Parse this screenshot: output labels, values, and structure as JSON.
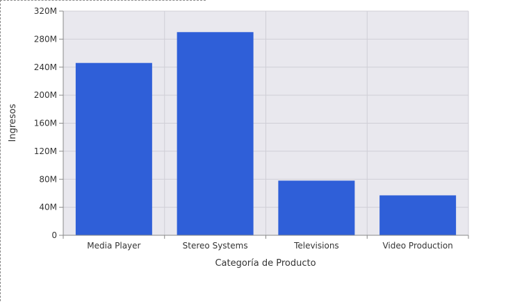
{
  "chart_data": {
    "type": "bar",
    "xlabel": "Categoría de Producto",
    "ylabel": "Ingresos",
    "categories": [
      "Media Player",
      "Stereo Systems",
      "Televisions",
      "Video Production"
    ],
    "values": [
      246000000,
      290000000,
      78000000,
      57000000
    ],
    "ylim": [
      0,
      320000000
    ],
    "yticks": [
      0,
      40000000,
      80000000,
      120000000,
      160000000,
      200000000,
      240000000,
      280000000,
      320000000
    ],
    "ytick_labels": [
      "0",
      "40M",
      "80M",
      "120M",
      "160M",
      "200M",
      "240M",
      "280M",
      "320M"
    ],
    "grid": true,
    "colors": {
      "bar": "#2f5fd8",
      "plot_bg": "#e9e8ee",
      "grid": "#cfced6",
      "axis": "#888888",
      "text": "#333333"
    }
  }
}
